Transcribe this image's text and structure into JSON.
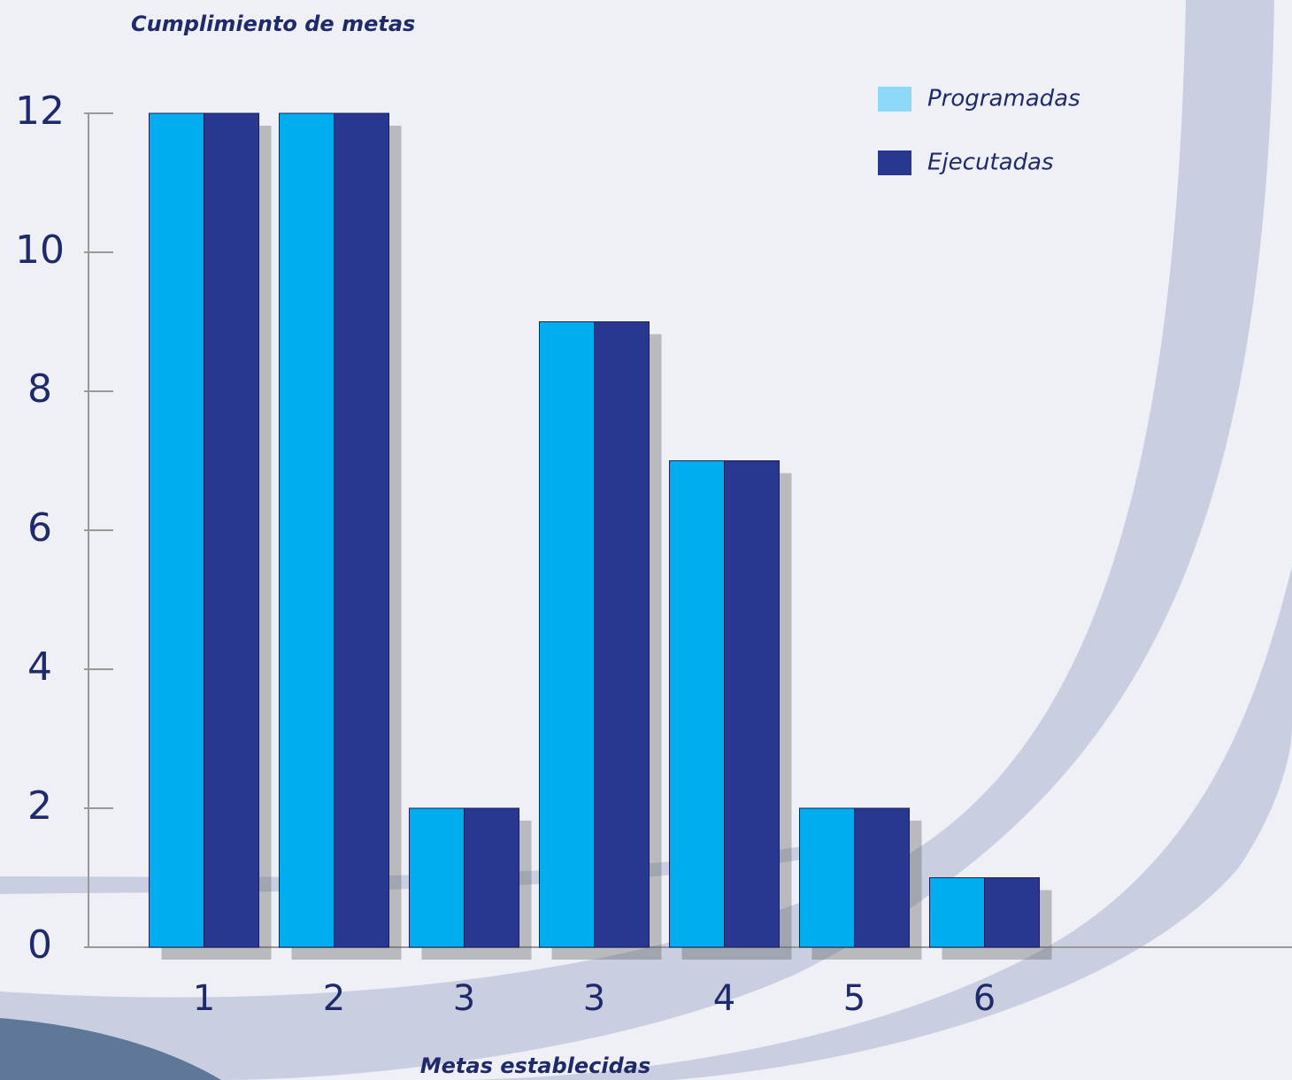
{
  "chart_data": {
    "type": "bar",
    "title": "Cumplimiento de metas",
    "x_label": "Metas establecidas",
    "categories": [
      "1",
      "2",
      "3",
      "3",
      "4",
      "5",
      "6"
    ],
    "series": [
      {
        "name": "Programadas",
        "color": "#00aeef",
        "values": [
          12,
          12,
          2,
          9,
          7,
          2,
          1
        ]
      },
      {
        "name": "Ejecutadas",
        "color": "#283891",
        "values": [
          12,
          12,
          2,
          9,
          7,
          2,
          1
        ]
      }
    ],
    "ylim": [
      0,
      12
    ],
    "yticks": [
      0,
      2,
      4,
      6,
      8,
      10,
      12
    ],
    "legend": "top-right"
  }
}
